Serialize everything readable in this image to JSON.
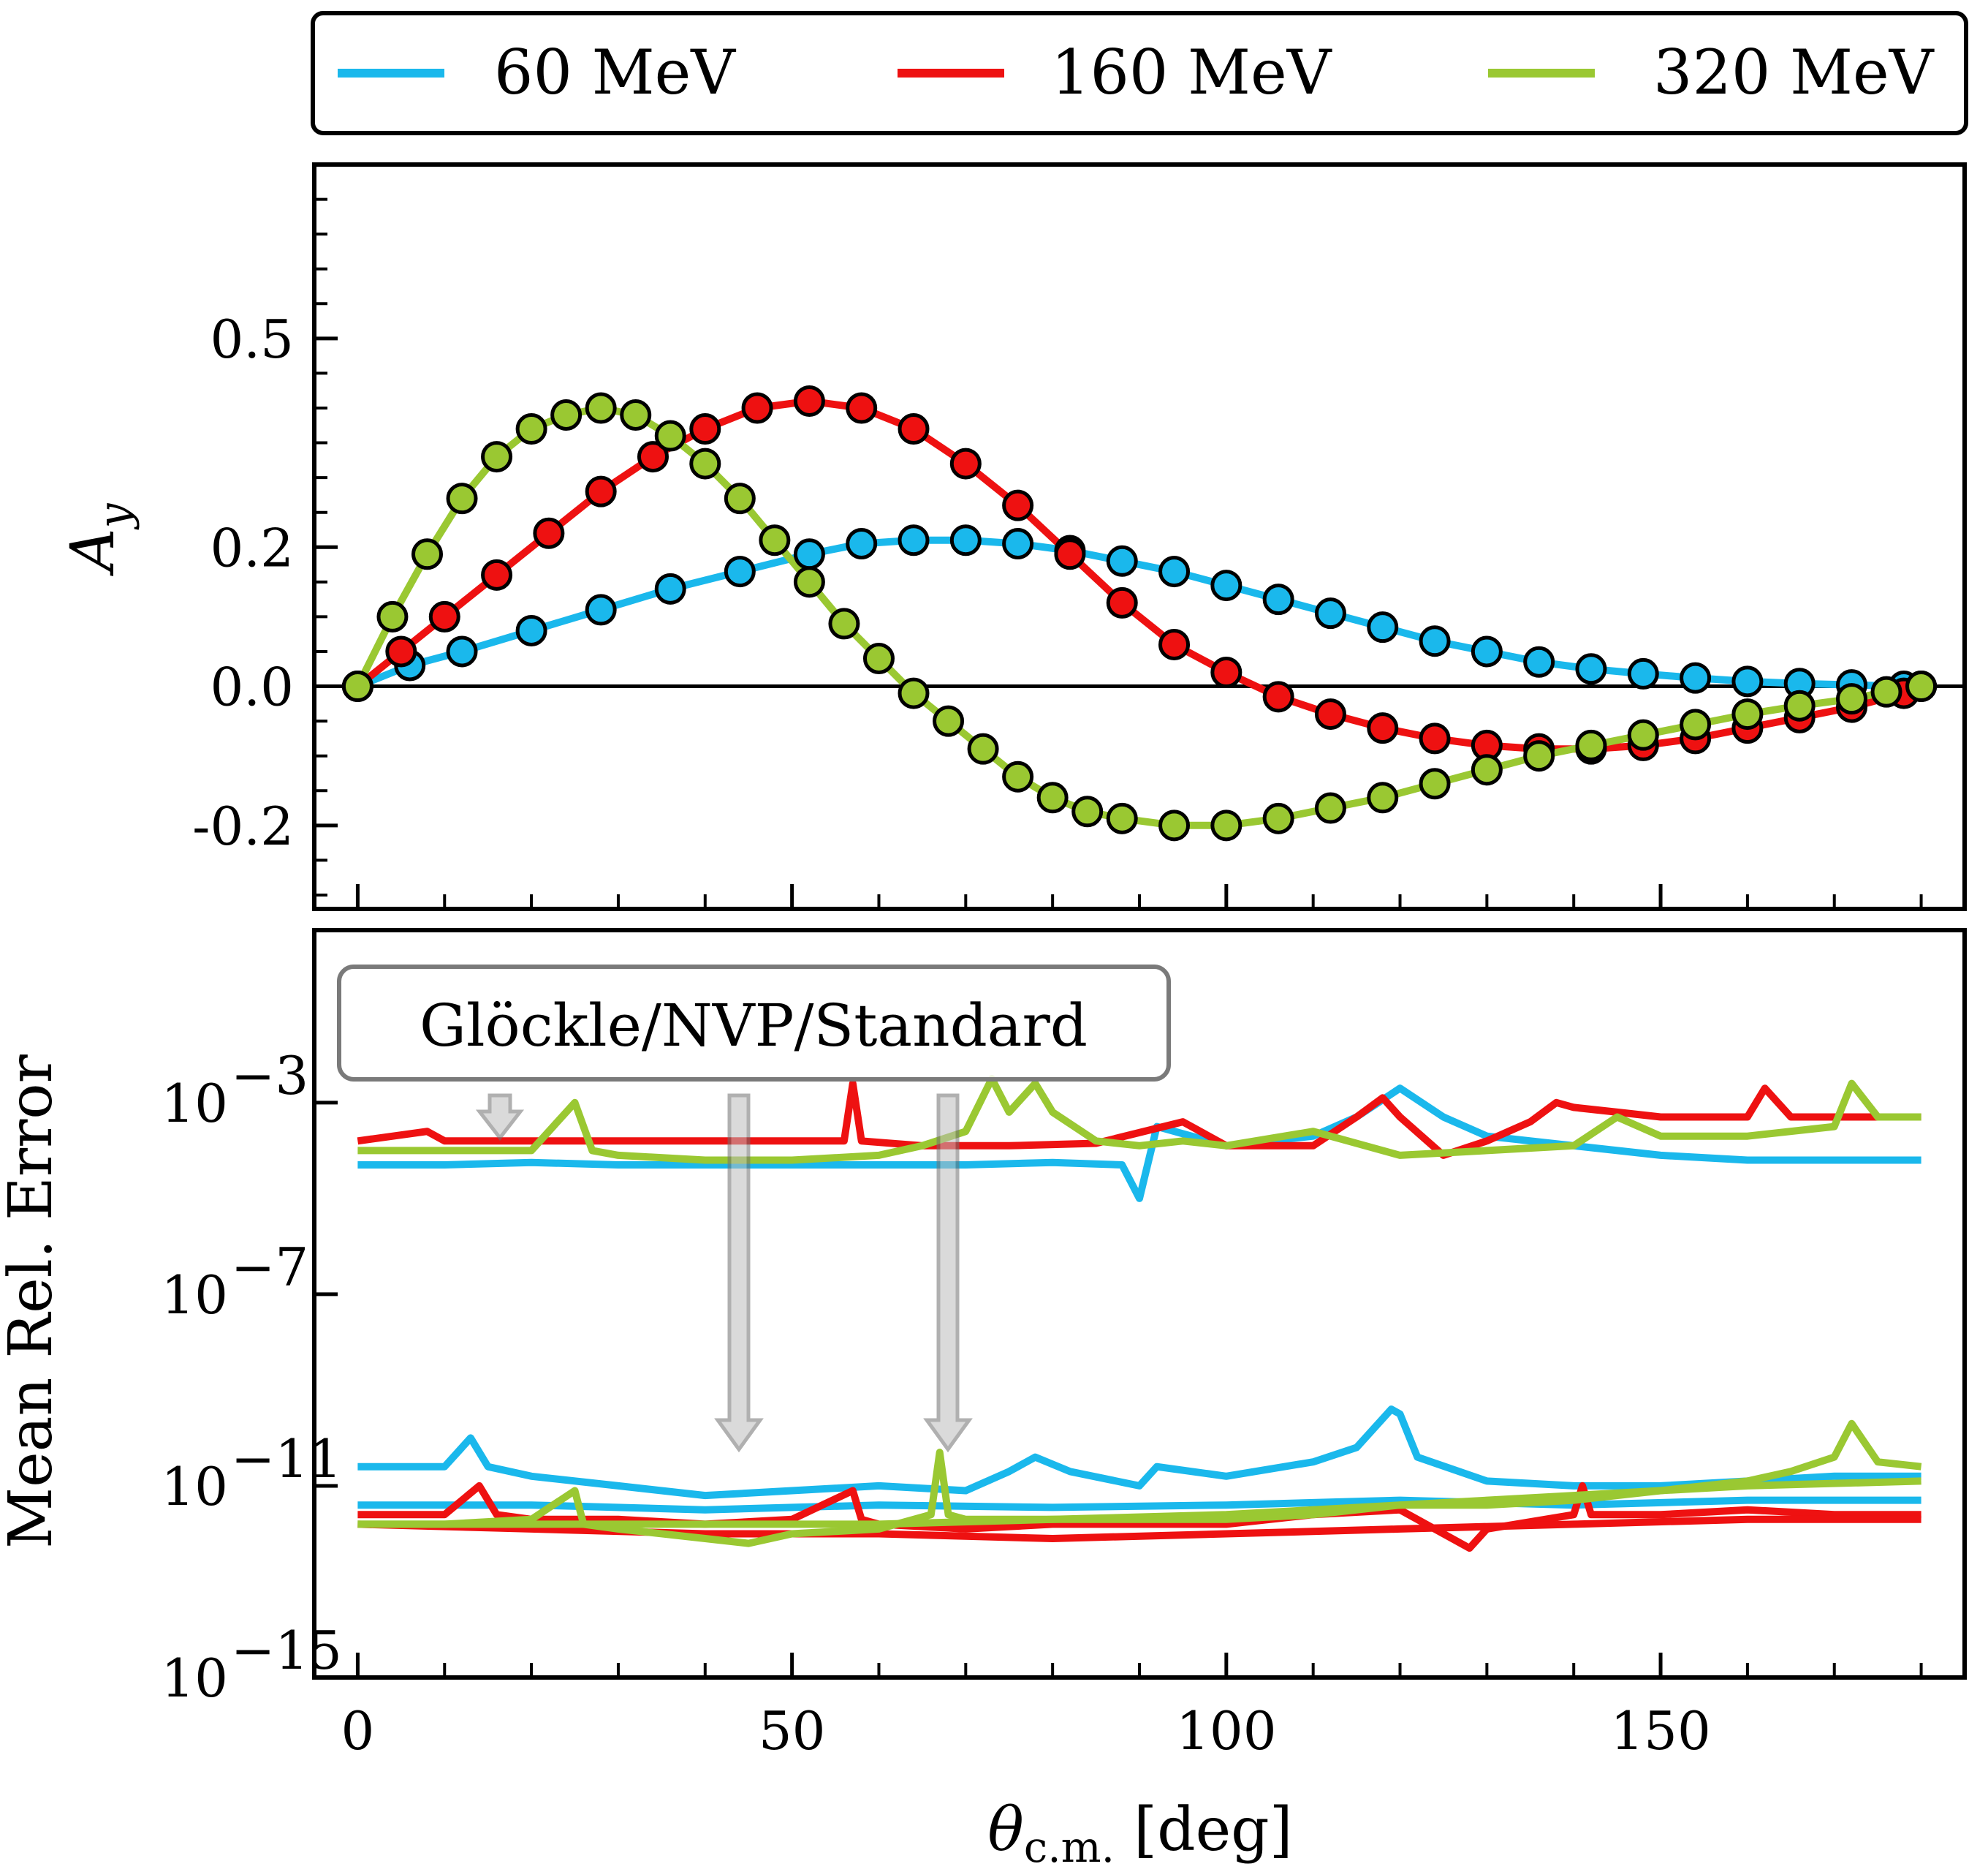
{
  "chart_data": [
    {
      "type": "line",
      "panel": "top",
      "title": "",
      "xlabel": "",
      "ylabel": "A_y",
      "ylabel_main": "A",
      "ylabel_sub": "y",
      "xlim": [
        -5,
        185
      ],
      "ylim": [
        -0.32,
        0.75
      ],
      "yticks": [
        -0.2,
        0.0,
        0.2,
        0.5
      ],
      "ytick_labels": [
        "-0.2",
        "0.0",
        "0.2",
        "0.5"
      ],
      "xticks": [
        0,
        50,
        100,
        150
      ],
      "hline": 0.0,
      "markers": "circles on every series (computed samples)",
      "series": [
        {
          "name": "60 MeV",
          "color": "#1ab8ec",
          "x": [
            0,
            6,
            12,
            20,
            28,
            36,
            44,
            52,
            58,
            64,
            70,
            76,
            82,
            88,
            94,
            100,
            106,
            112,
            118,
            124,
            130,
            136,
            142,
            148,
            154,
            160,
            166,
            172,
            178,
            180
          ],
          "values": [
            0.0,
            0.03,
            0.05,
            0.08,
            0.11,
            0.14,
            0.165,
            0.19,
            0.205,
            0.21,
            0.21,
            0.205,
            0.195,
            0.18,
            0.165,
            0.145,
            0.125,
            0.105,
            0.085,
            0.065,
            0.05,
            0.035,
            0.025,
            0.018,
            0.012,
            0.007,
            0.004,
            0.002,
            0.0,
            0.0
          ]
        },
        {
          "name": "160 MeV",
          "color": "#ee1111",
          "x": [
            0,
            5,
            10,
            16,
            22,
            28,
            34,
            40,
            46,
            52,
            58,
            64,
            70,
            76,
            82,
            88,
            94,
            100,
            106,
            112,
            118,
            124,
            130,
            136,
            142,
            148,
            154,
            160,
            166,
            172,
            178,
            180
          ],
          "values": [
            0.0,
            0.05,
            0.1,
            0.16,
            0.22,
            0.28,
            0.33,
            0.37,
            0.4,
            0.41,
            0.4,
            0.37,
            0.32,
            0.26,
            0.19,
            0.12,
            0.06,
            0.02,
            -0.015,
            -0.04,
            -0.06,
            -0.075,
            -0.085,
            -0.09,
            -0.09,
            -0.085,
            -0.075,
            -0.06,
            -0.045,
            -0.03,
            -0.01,
            0.0
          ]
        },
        {
          "name": "320 MeV",
          "color": "#9ac832",
          "x": [
            0,
            4,
            8,
            12,
            16,
            20,
            24,
            28,
            32,
            36,
            40,
            44,
            48,
            52,
            56,
            60,
            64,
            68,
            72,
            76,
            80,
            84,
            88,
            94,
            100,
            106,
            112,
            118,
            124,
            130,
            136,
            142,
            148,
            154,
            160,
            166,
            172,
            176,
            180
          ],
          "values": [
            0.0,
            0.1,
            0.19,
            0.27,
            0.33,
            0.37,
            0.39,
            0.4,
            0.39,
            0.36,
            0.32,
            0.27,
            0.21,
            0.15,
            0.09,
            0.04,
            -0.01,
            -0.05,
            -0.09,
            -0.13,
            -0.16,
            -0.18,
            -0.19,
            -0.2,
            -0.2,
            -0.19,
            -0.175,
            -0.16,
            -0.14,
            -0.12,
            -0.1,
            -0.085,
            -0.07,
            -0.055,
            -0.04,
            -0.028,
            -0.018,
            -0.008,
            0.0
          ]
        }
      ]
    },
    {
      "type": "line",
      "panel": "bottom",
      "title": "",
      "xlabel": "θc.m. [deg]",
      "xlabel_main": "θ",
      "xlabel_sub": "c.m.",
      "xlabel_rest": " [deg]",
      "ylabel": "Mean Rel. Error",
      "yscale": "log",
      "xlim": [
        -5,
        185
      ],
      "ylim_log10": [
        -15,
        0.6
      ],
      "yticks_log10": [
        -15,
        -11,
        -7,
        -3
      ],
      "ytick_labels": [
        "10",
        "10",
        "10",
        "10"
      ],
      "ytick_exponents": [
        "−15",
        "−11",
        "−7",
        "−3"
      ],
      "xticks": [
        0,
        50,
        100,
        150
      ],
      "xtick_labels": [
        "0",
        "50",
        "100",
        "150"
      ],
      "annotation": "Glöckle/NVP/Standard",
      "note": "values are log10(mean relative error)",
      "series": [
        {
          "name": "60 MeV (Glöckle)",
          "color": "#1ab8ec",
          "x": [
            0,
            10,
            20,
            30,
            40,
            50,
            60,
            70,
            80,
            88,
            90,
            92,
            100,
            110,
            115,
            120,
            125,
            130,
            140,
            150,
            160,
            170,
            180
          ],
          "values": [
            -4.3,
            -4.3,
            -4.25,
            -4.3,
            -4.3,
            -4.3,
            -4.3,
            -4.3,
            -4.25,
            -4.3,
            -5.0,
            -3.5,
            -3.9,
            -3.7,
            -3.3,
            -2.7,
            -3.3,
            -3.7,
            -3.9,
            -4.1,
            -4.2,
            -4.2,
            -4.2
          ]
        },
        {
          "name": "60 MeV (NVP)",
          "color": "#1ab8ec",
          "x": [
            0,
            10,
            13,
            15,
            20,
            30,
            40,
            50,
            60,
            70,
            75,
            78,
            82,
            90,
            92,
            100,
            110,
            115,
            119,
            120,
            122,
            130,
            140,
            150,
            160,
            170,
            180
          ],
          "values": [
            -10.6,
            -10.6,
            -10.0,
            -10.6,
            -10.8,
            -11.0,
            -11.2,
            -11.1,
            -11.0,
            -11.1,
            -10.7,
            -10.4,
            -10.7,
            -11.0,
            -10.6,
            -10.8,
            -10.5,
            -10.2,
            -9.4,
            -9.5,
            -10.4,
            -10.9,
            -11.0,
            -11.0,
            -10.9,
            -10.8,
            -10.8
          ]
        },
        {
          "name": "60 MeV (Standard)",
          "color": "#1ab8ec",
          "x": [
            0,
            20,
            40,
            60,
            80,
            100,
            120,
            140,
            160,
            180
          ],
          "values": [
            -11.4,
            -11.4,
            -11.5,
            -11.4,
            -11.45,
            -11.4,
            -11.3,
            -11.4,
            -11.3,
            -11.3
          ]
        },
        {
          "name": "160 MeV (Glöckle)",
          "color": "#ee1111",
          "x": [
            0,
            8,
            10,
            20,
            30,
            40,
            50,
            56,
            57,
            58,
            65,
            75,
            85,
            95,
            100,
            110,
            115,
            118,
            120,
            125,
            130,
            135,
            138,
            140,
            145,
            150,
            160,
            162,
            165,
            170,
            180
          ],
          "values": [
            -3.8,
            -3.6,
            -3.8,
            -3.8,
            -3.8,
            -3.8,
            -3.8,
            -3.8,
            -2.6,
            -3.8,
            -3.9,
            -3.9,
            -3.85,
            -3.4,
            -3.9,
            -3.9,
            -3.3,
            -2.9,
            -3.3,
            -4.1,
            -3.8,
            -3.4,
            -3.0,
            -3.1,
            -3.2,
            -3.3,
            -3.3,
            -2.7,
            -3.3,
            -3.3,
            -3.3
          ]
        },
        {
          "name": "160 MeV (NVP)",
          "color": "#ee1111",
          "x": [
            0,
            10,
            14,
            16,
            20,
            30,
            40,
            50,
            57,
            58,
            60,
            70,
            80,
            90,
            100,
            110,
            120,
            128,
            130,
            140,
            141,
            142,
            150,
            160,
            170,
            180
          ],
          "values": [
            -11.6,
            -11.6,
            -11.0,
            -11.6,
            -11.7,
            -11.7,
            -11.8,
            -11.7,
            -11.1,
            -11.7,
            -11.8,
            -11.9,
            -11.8,
            -11.8,
            -11.8,
            -11.6,
            -11.5,
            -12.3,
            -11.9,
            -11.6,
            -11.0,
            -11.6,
            -11.6,
            -11.5,
            -11.6,
            -11.6
          ]
        },
        {
          "name": "160 MeV (Standard)",
          "color": "#ee1111",
          "x": [
            0,
            20,
            40,
            60,
            80,
            100,
            120,
            140,
            160,
            180
          ],
          "values": [
            -11.8,
            -11.9,
            -12.0,
            -12.0,
            -12.1,
            -12.0,
            -11.9,
            -11.8,
            -11.7,
            -11.7
          ]
        },
        {
          "name": "320 MeV (Glöckle)",
          "color": "#9ac832",
          "x": [
            0,
            20,
            25,
            27,
            30,
            40,
            50,
            60,
            65,
            70,
            73,
            75,
            78,
            80,
            85,
            90,
            95,
            100,
            110,
            120,
            130,
            140,
            145,
            150,
            160,
            170,
            172,
            175,
            180
          ],
          "values": [
            -4.0,
            -4.0,
            -3.0,
            -4.0,
            -4.1,
            -4.2,
            -4.2,
            -4.1,
            -3.9,
            -3.6,
            -2.5,
            -3.2,
            -2.6,
            -3.2,
            -3.8,
            -3.9,
            -3.8,
            -3.9,
            -3.6,
            -4.1,
            -4.0,
            -3.9,
            -3.3,
            -3.7,
            -3.7,
            -3.5,
            -2.6,
            -3.3,
            -3.3
          ]
        },
        {
          "name": "320 MeV (NVP)",
          "color": "#9ac832",
          "x": [
            0,
            10,
            20,
            25,
            26,
            30,
            40,
            45,
            50,
            60,
            66,
            67,
            68,
            70,
            80,
            90,
            100,
            110,
            120,
            130,
            140,
            150,
            160,
            165,
            170,
            172,
            175,
            180
          ],
          "values": [
            -11.8,
            -11.8,
            -11.7,
            -11.1,
            -11.8,
            -11.9,
            -12.1,
            -12.2,
            -12.0,
            -11.9,
            -11.6,
            -10.3,
            -11.6,
            -11.7,
            -11.7,
            -11.7,
            -11.7,
            -11.6,
            -11.4,
            -11.4,
            -11.3,
            -11.1,
            -10.9,
            -10.7,
            -10.4,
            -9.7,
            -10.5,
            -10.6
          ]
        },
        {
          "name": "320 MeV (Standard)",
          "color": "#9ac832",
          "x": [
            0,
            20,
            40,
            60,
            80,
            100,
            120,
            140,
            160,
            180
          ],
          "values": [
            -11.8,
            -11.8,
            -11.8,
            -11.8,
            -11.7,
            -11.6,
            -11.4,
            -11.2,
            -11.0,
            -10.9
          ]
        }
      ]
    }
  ],
  "legend": {
    "position": "top",
    "entries": [
      {
        "label": "60 MeV",
        "color": "#1ab8ec"
      },
      {
        "label": "160 MeV",
        "color": "#ee1111"
      },
      {
        "label": "320 MeV",
        "color": "#9ac832"
      }
    ]
  }
}
